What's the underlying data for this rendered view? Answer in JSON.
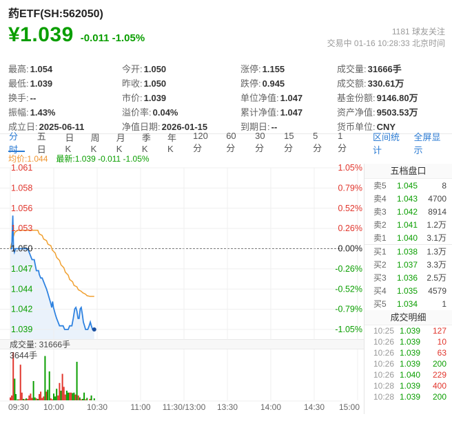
{
  "header": {
    "title": "药ETF(SH:562050)",
    "price": "¥1.039",
    "change": "-0.011 -1.05%",
    "followers": "1181 球友关注",
    "status_line": "交易中 01-16 10:28:33 北京时间"
  },
  "stats": {
    "columns": [
      [
        {
          "label": "最高:",
          "value": "1.054",
          "color": "red"
        },
        {
          "label": "最低:",
          "value": "1.039",
          "color": "green"
        },
        {
          "label": "换手:",
          "value": "--",
          "color": "dark"
        },
        {
          "label": "振幅:",
          "value": "1.43%",
          "color": "dark"
        },
        {
          "label": "成立日:",
          "value": "2025-06-11",
          "color": "dark"
        }
      ],
      [
        {
          "label": "今开:",
          "value": "1.050",
          "color": "dark"
        },
        {
          "label": "昨收:",
          "value": "1.050",
          "color": "dark"
        },
        {
          "label": "市价:",
          "value": "1.039",
          "color": "dark"
        },
        {
          "label": "溢价率:",
          "value": "0.04%",
          "color": "dark"
        },
        {
          "label": "净值日期:",
          "value": "2026-01-15",
          "color": "dark"
        }
      ],
      [
        {
          "label": "涨停:",
          "value": "1.155",
          "color": "red"
        },
        {
          "label": "跌停:",
          "value": "0.945",
          "color": "green"
        },
        {
          "label": "单位净值:",
          "value": "1.047",
          "color": "dark"
        },
        {
          "label": "累计净值:",
          "value": "1.047",
          "color": "dark"
        },
        {
          "label": "到期日:",
          "value": "--",
          "color": "dark"
        }
      ],
      [
        {
          "label": "成交量:",
          "value": "31666手",
          "color": "dark"
        },
        {
          "label": "成交额:",
          "value": "330.61万",
          "color": "dark"
        },
        {
          "label": "基金份额:",
          "value": "9146.80万",
          "color": "dark"
        },
        {
          "label": "资产净值:",
          "value": "9503.53万",
          "color": "dark"
        },
        {
          "label": "货币单位:",
          "value": "CNY",
          "color": "dark"
        }
      ]
    ]
  },
  "tabs": {
    "items": [
      "分时",
      "五日",
      "日K",
      "周K",
      "月K",
      "季K",
      "年K",
      "120分",
      "60分",
      "30分",
      "15分",
      "5分",
      "1分"
    ],
    "active": "分时",
    "right_links": [
      "区间统计",
      "全屏显示"
    ]
  },
  "legend": {
    "avg": "均价:1.044",
    "latest": "最新:1.039 -0.011 -1.05%"
  },
  "chart_data": {
    "type": "line",
    "title": "分时 (intraday time-share)",
    "prev_close": 1.05,
    "x_axis_labels": [
      "09:30",
      "10:00",
      "10:30",
      "11:00",
      "11:30/13:00",
      "13:30",
      "14:00",
      "14:30",
      "15:00"
    ],
    "y_left_labels": [
      "1.061",
      "1.058",
      "1.056",
      "1.053",
      "1.050",
      "1.047",
      "1.044",
      "1.042",
      "1.039"
    ],
    "y_right_labels": [
      "1.05%",
      "0.79%",
      "0.52%",
      "0.26%",
      "0.00%",
      "-0.26%",
      "-0.52%",
      "-0.79%",
      "-1.05%"
    ],
    "ylim": [
      1.039,
      1.061
    ],
    "session_minutes": 240,
    "series": [
      {
        "name": "price",
        "color": "#2e82e0",
        "points": [
          [
            0,
            1.05
          ],
          [
            1,
            1.05
          ],
          [
            1.3,
            1.052
          ],
          [
            1.7,
            1.0545
          ],
          [
            2.2,
            1.05
          ],
          [
            2.8,
            1.0495
          ],
          [
            3.5,
            1.05
          ],
          [
            12,
            1.05
          ],
          [
            13,
            1.0495
          ],
          [
            14,
            1.049
          ],
          [
            15,
            1.0485
          ],
          [
            16.5,
            1.0485
          ],
          [
            17,
            1.048
          ],
          [
            18,
            1.047
          ],
          [
            19.5,
            1.047
          ],
          [
            20,
            1.0465
          ],
          [
            21,
            1.046
          ],
          [
            22,
            1.046
          ],
          [
            23,
            1.0455
          ],
          [
            24,
            1.045
          ],
          [
            25,
            1.0445
          ],
          [
            25.8,
            1.044
          ],
          [
            26.5,
            1.0435
          ],
          [
            27.3,
            1.043
          ],
          [
            28,
            1.0425
          ],
          [
            28.6,
            1.042
          ],
          [
            29.2,
            1.0428
          ],
          [
            29.8,
            1.042
          ],
          [
            30.5,
            1.0415
          ],
          [
            31.2,
            1.041
          ],
          [
            32,
            1.0405
          ],
          [
            33,
            1.04
          ],
          [
            34,
            1.0395
          ],
          [
            36.5,
            1.0395
          ],
          [
            37.5,
            1.039
          ],
          [
            40,
            1.039
          ],
          [
            41,
            1.0395
          ],
          [
            42.5,
            1.0395
          ],
          [
            43.5,
            1.0405
          ],
          [
            44.5,
            1.0418
          ],
          [
            45.3,
            1.042
          ],
          [
            46,
            1.0415
          ],
          [
            46.8,
            1.0405
          ],
          [
            47.5,
            1.0405
          ],
          [
            48.3,
            1.0418
          ],
          [
            49,
            1.042
          ],
          [
            49.8,
            1.041
          ],
          [
            50.5,
            1.04
          ],
          [
            51.3,
            1.0395
          ],
          [
            52,
            1.039
          ],
          [
            53.5,
            1.039
          ],
          [
            54.5,
            1.0395
          ],
          [
            55.3,
            1.04
          ],
          [
            56,
            1.0395
          ],
          [
            56.8,
            1.039
          ],
          [
            58,
            1.039
          ]
        ]
      },
      {
        "name": "average",
        "color": "#f0a030",
        "points": [
          [
            0,
            1.05
          ],
          [
            1.5,
            1.0512
          ],
          [
            3,
            1.0522
          ],
          [
            5,
            1.0525
          ],
          [
            19,
            1.0525
          ],
          [
            20,
            1.052
          ],
          [
            22,
            1.0518
          ],
          [
            23,
            1.0513
          ],
          [
            25,
            1.0511
          ],
          [
            26,
            1.0506
          ],
          [
            28,
            1.0504
          ],
          [
            29,
            1.0498
          ],
          [
            31,
            1.0494
          ],
          [
            32,
            1.0488
          ],
          [
            34,
            1.0484
          ],
          [
            35,
            1.0478
          ],
          [
            37,
            1.0474
          ],
          [
            38,
            1.0468
          ],
          [
            40,
            1.0464
          ],
          [
            41,
            1.0458
          ],
          [
            43,
            1.0455
          ],
          [
            44,
            1.045
          ],
          [
            46,
            1.0448
          ],
          [
            47,
            1.0444
          ],
          [
            49,
            1.0442
          ],
          [
            50,
            1.044
          ],
          [
            52,
            1.0438
          ],
          [
            53,
            1.0436
          ],
          [
            55,
            1.0435
          ],
          [
            58,
            1.0435
          ]
        ]
      }
    ],
    "volume": {
      "label": "成交量: 31666手",
      "max_label": "3644手",
      "bars": [
        [
          0,
          0.06,
          "r"
        ],
        [
          1,
          0.1,
          "r"
        ],
        [
          2,
          1.0,
          "r"
        ],
        [
          3,
          0.45,
          "g"
        ],
        [
          3.8,
          0.13,
          "g"
        ],
        [
          5,
          0.02,
          "g"
        ],
        [
          6,
          0.02,
          "r"
        ],
        [
          7,
          0.74,
          "r"
        ],
        [
          8,
          0.16,
          "r"
        ],
        [
          9,
          0.03,
          "g"
        ],
        [
          10,
          0.02,
          "r"
        ],
        [
          11,
          0.04,
          "g"
        ],
        [
          12,
          0.03,
          "r"
        ],
        [
          13,
          0.1,
          "r"
        ],
        [
          14,
          0.14,
          "r"
        ],
        [
          15,
          0.05,
          "r"
        ],
        [
          16,
          0.4,
          "g"
        ],
        [
          17,
          0.06,
          "g"
        ],
        [
          18,
          0.04,
          "r"
        ],
        [
          19,
          0.03,
          "g"
        ],
        [
          20,
          0.13,
          "r"
        ],
        [
          21,
          0.18,
          "r"
        ],
        [
          22,
          0.05,
          "r"
        ],
        [
          23,
          0.08,
          "r"
        ],
        [
          24,
          0.92,
          "g"
        ],
        [
          25,
          0.18,
          "r"
        ],
        [
          25.8,
          0.22,
          "g"
        ],
        [
          27,
          0.6,
          "g"
        ],
        [
          28,
          0.04,
          "r"
        ],
        [
          29,
          0.02,
          "r"
        ],
        [
          30,
          0.14,
          "g"
        ],
        [
          31,
          0.08,
          "g"
        ],
        [
          32,
          0.24,
          "g"
        ],
        [
          33,
          0.1,
          "r"
        ],
        [
          34,
          0.36,
          "r"
        ],
        [
          35,
          0.2,
          "g"
        ],
        [
          36,
          0.55,
          "r"
        ],
        [
          37,
          0.28,
          "r"
        ],
        [
          38,
          0.12,
          "r"
        ],
        [
          39,
          0.2,
          "g"
        ],
        [
          40,
          0.16,
          "g"
        ],
        [
          41,
          0.16,
          "r"
        ],
        [
          42,
          0.16,
          "r"
        ],
        [
          43,
          0.15,
          "g"
        ],
        [
          44,
          0.16,
          "g"
        ],
        [
          45,
          0.12,
          "r"
        ],
        [
          46,
          0.8,
          "g"
        ],
        [
          47,
          0.1,
          "r"
        ],
        [
          48,
          0.06,
          "g"
        ],
        [
          49,
          0.02,
          "r"
        ],
        [
          50,
          0.03,
          "g"
        ],
        [
          51,
          0.16,
          "g"
        ],
        [
          52,
          0.02,
          "r"
        ],
        [
          53,
          0.05,
          "g"
        ],
        [
          55,
          0.03,
          "r"
        ],
        [
          56,
          0.1,
          "g"
        ],
        [
          58,
          0.04,
          "g"
        ]
      ]
    }
  },
  "order_book": {
    "header": "五档盘口",
    "asks": [
      {
        "side": "卖5",
        "price": "1.045",
        "qty": "8"
      },
      {
        "side": "卖4",
        "price": "1.043",
        "qty": "4700"
      },
      {
        "side": "卖3",
        "price": "1.042",
        "qty": "8914"
      },
      {
        "side": "卖2",
        "price": "1.041",
        "qty": "1.2万"
      },
      {
        "side": "卖1",
        "price": "1.040",
        "qty": "3.1万"
      }
    ],
    "bids": [
      {
        "side": "买1",
        "price": "1.038",
        "qty": "1.3万"
      },
      {
        "side": "买2",
        "price": "1.037",
        "qty": "3.3万"
      },
      {
        "side": "买3",
        "price": "1.036",
        "qty": "2.5万"
      },
      {
        "side": "买4",
        "price": "1.035",
        "qty": "4579"
      },
      {
        "side": "买5",
        "price": "1.034",
        "qty": "1"
      }
    ]
  },
  "transactions": {
    "header": "成交明细",
    "rows": [
      {
        "time": "10:25",
        "price": "1.039",
        "vol": "127",
        "dir": "r"
      },
      {
        "time": "10:26",
        "price": "1.039",
        "vol": "10",
        "dir": "r"
      },
      {
        "time": "10:26",
        "price": "1.039",
        "vol": "63",
        "dir": "r"
      },
      {
        "time": "10:26",
        "price": "1.039",
        "vol": "200",
        "dir": "g"
      },
      {
        "time": "10:26",
        "price": "1.040",
        "vol": "229",
        "dir": "r"
      },
      {
        "time": "10:28",
        "price": "1.039",
        "vol": "400",
        "dir": "r"
      },
      {
        "time": "10:28",
        "price": "1.039",
        "vol": "200",
        "dir": "g"
      }
    ]
  },
  "colors": {
    "up_red": "#e1352c",
    "down_green": "#0a9e00",
    "link_blue": "#2b7bd3",
    "line_blue": "#2e82e0",
    "line_fill": "#eaf2fb",
    "avg_orange": "#f0a030",
    "grid": "#efefef",
    "zero_line": "#777777"
  }
}
